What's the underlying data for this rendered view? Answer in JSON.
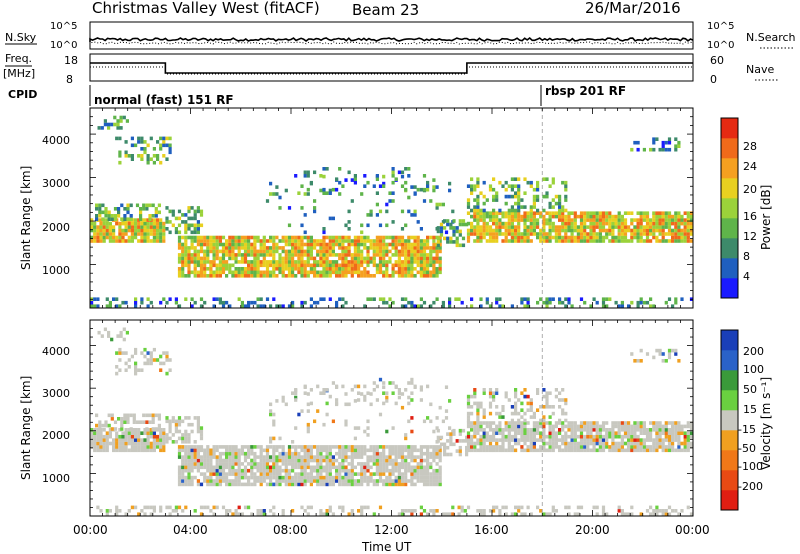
{
  "header": {
    "station_title": "Christmas Valley West (fitACF)",
    "beam_label": "Beam 23",
    "date_label": "26/Mar/2016"
  },
  "top_panels": {
    "nsky_label": "N.Sky",
    "nsky_ticks": [
      "10^5",
      "10^0"
    ],
    "nsearch_label": "N.Search",
    "nsearch_ticks": [
      "10^5",
      "10^0"
    ],
    "freq_label": "Freq.",
    "freq_unit": "[MHz]",
    "freq_ticks": [
      "18",
      "8"
    ],
    "nave_label": "Nave",
    "nave_ticks": [
      "60",
      "0"
    ],
    "cpid_label": "CPID",
    "cpid_segments": [
      {
        "label": "normal (fast) 151 RF",
        "start_hr": 0.0
      },
      {
        "label": "rbsp 201 RF",
        "start_hr": 18.0
      }
    ]
  },
  "chart_data": [
    {
      "type": "heatmap",
      "name": "power",
      "xlabel": "",
      "ylabel": "Slant Range [km]",
      "x_range_hr": [
        0,
        24
      ],
      "ylim": [
        0,
        4600
      ],
      "y_ticks": [
        "1000",
        "2000",
        "3000",
        "4000"
      ],
      "colorbar_label": "Power [dB]",
      "colorbar_ticks": [
        "4",
        "8",
        "12",
        "16",
        "20",
        "24",
        "28"
      ],
      "colorbar_colors": [
        "#1a1aff",
        "#1f5fbf",
        "#3d8a6a",
        "#5fb44a",
        "#9bd23a",
        "#e8d020",
        "#f5a020",
        "#f06a1a",
        "#e52a12"
      ]
    },
    {
      "type": "heatmap",
      "name": "velocity",
      "xlabel": "Time UT",
      "ylabel": "Slant Range [km]",
      "x_range_hr": [
        0,
        24
      ],
      "x_ticks": [
        "00:00",
        "04:00",
        "08:00",
        "12:00",
        "16:00",
        "20:00",
        "00:00"
      ],
      "ylim": [
        0,
        4600
      ],
      "y_ticks": [
        "1000",
        "2000",
        "3000",
        "4000"
      ],
      "colorbar_label": "Velocity [m s⁻¹]",
      "colorbar_ticks": [
        "200",
        "100",
        "50",
        "15",
        "-15",
        "-50",
        "-100",
        "-200"
      ],
      "colorbar_colors": [
        "#1a3fb8",
        "#2a62c8",
        "#3a9a3a",
        "#6ad040",
        "#c8c8c0",
        "#f0a020",
        "#f07818",
        "#e84a14",
        "#e01e12"
      ]
    }
  ]
}
